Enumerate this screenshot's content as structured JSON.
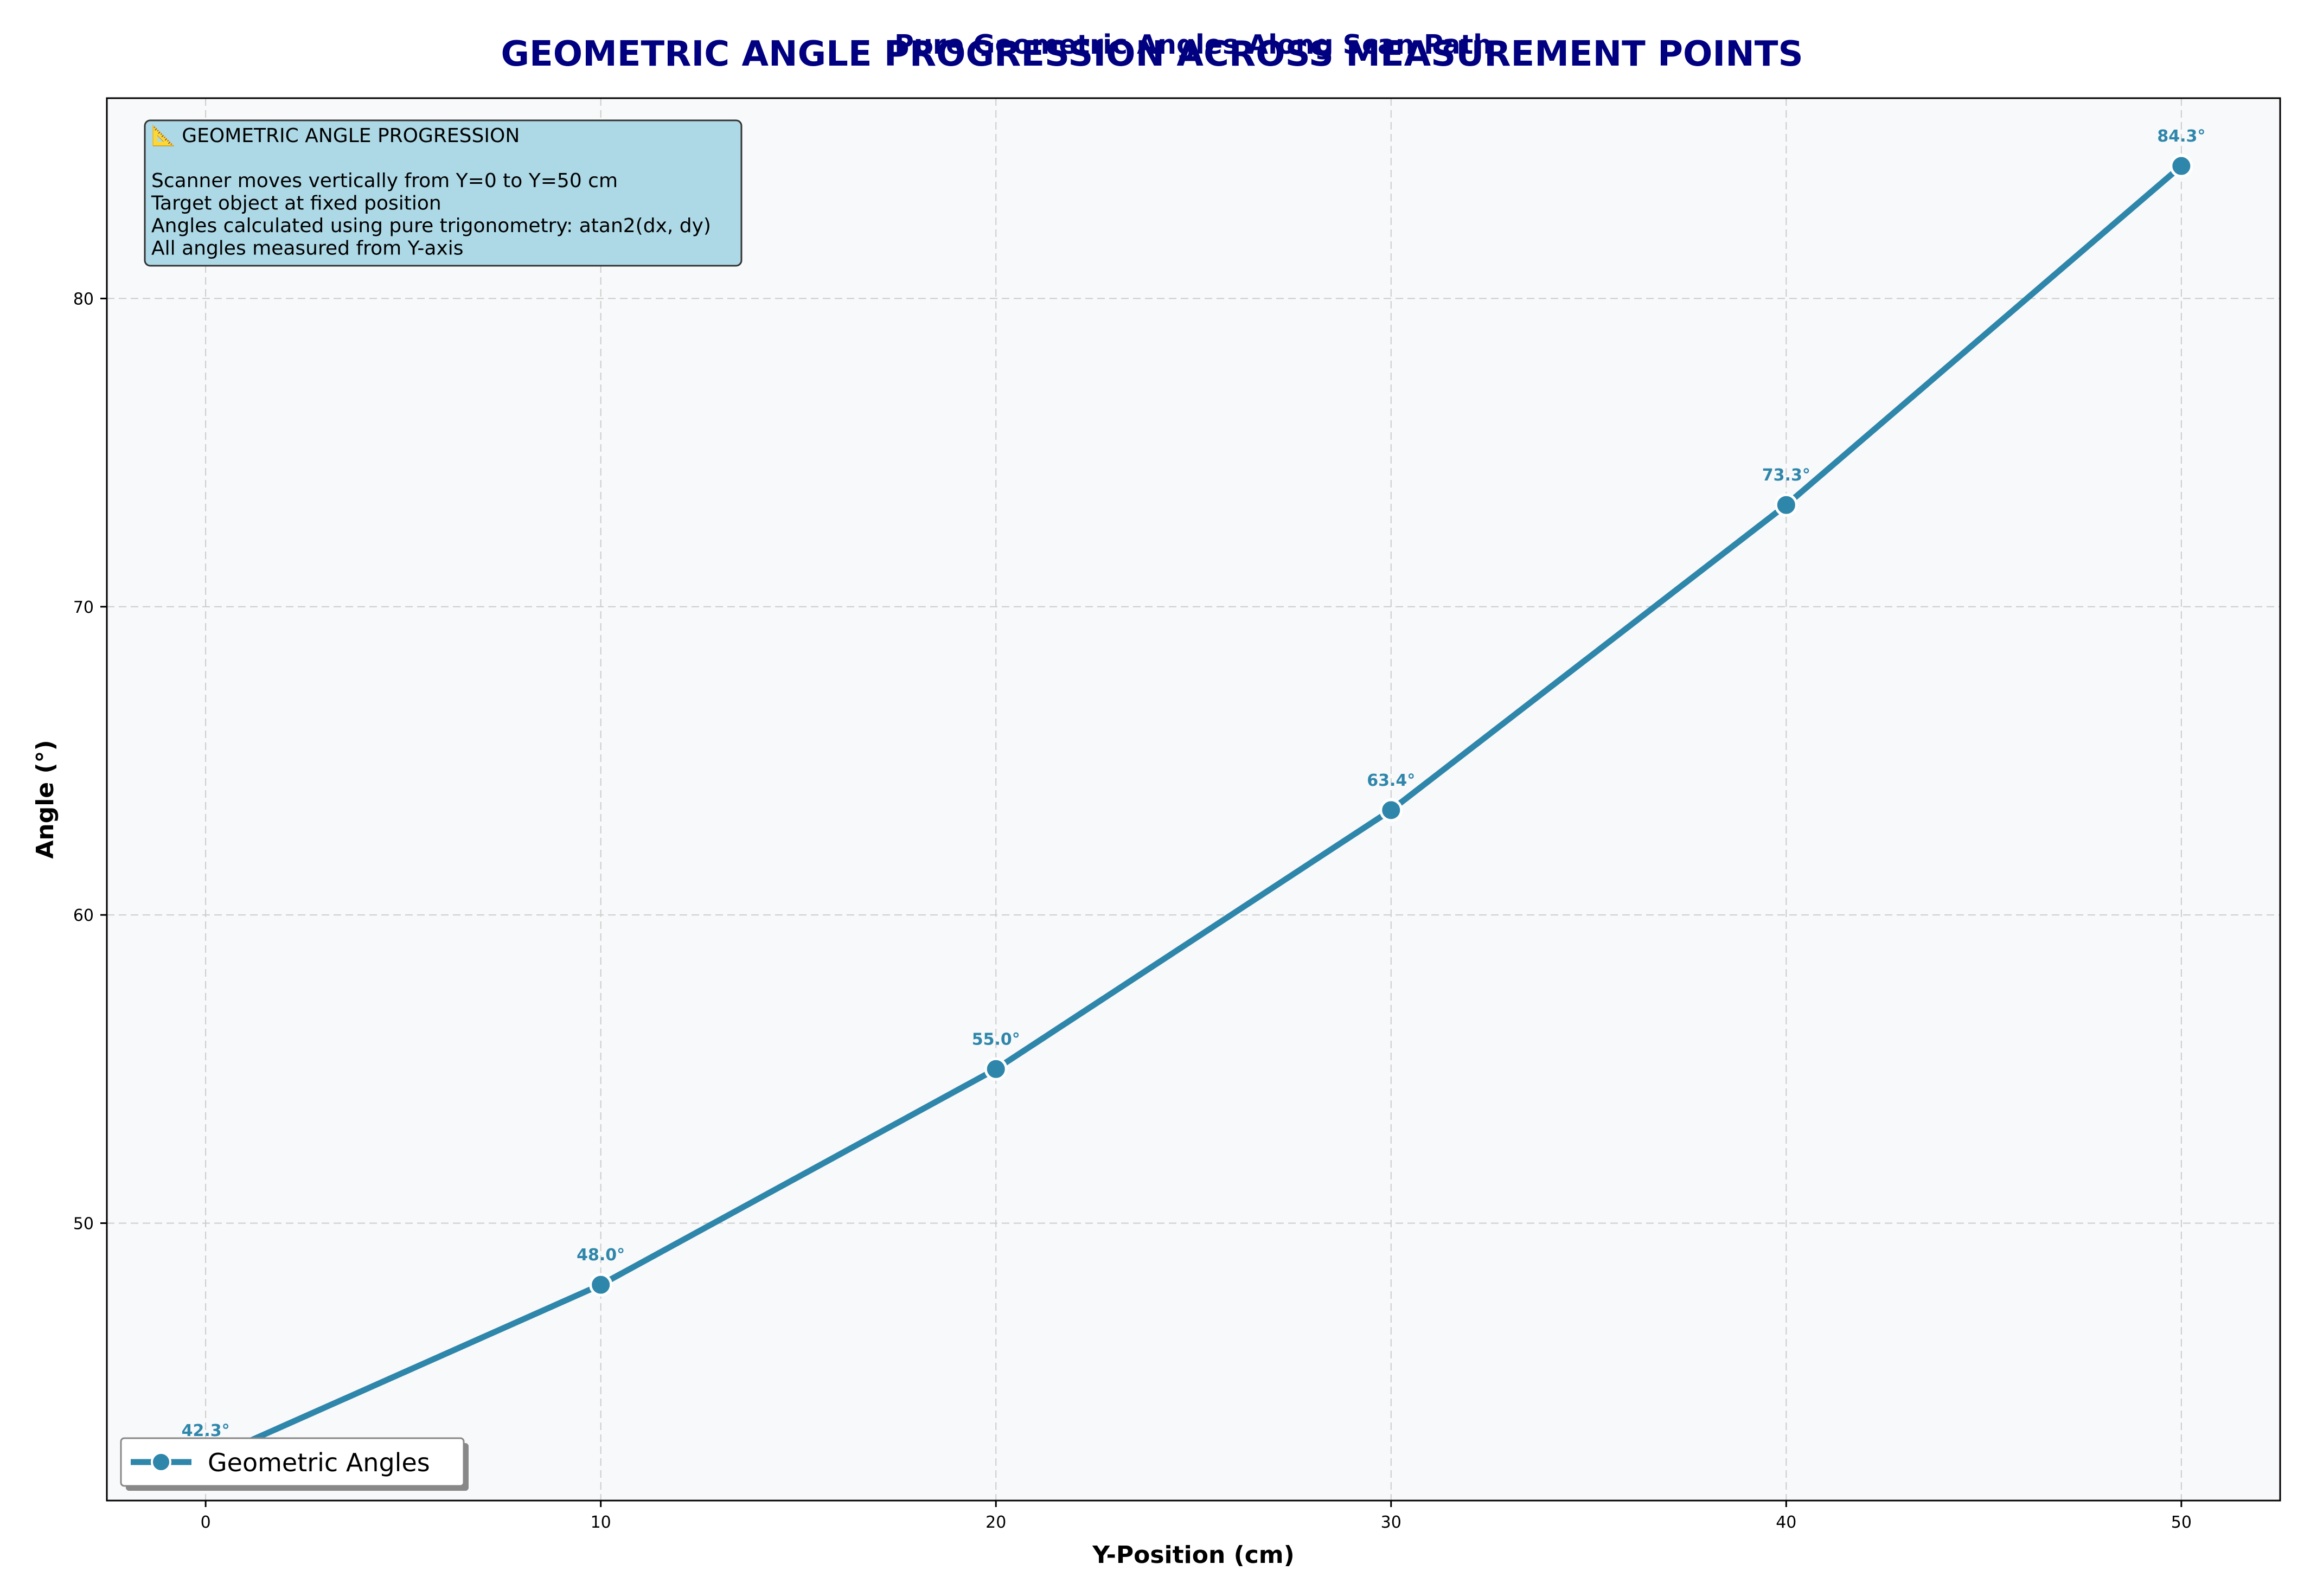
{
  "chart_data": {
    "type": "line",
    "suptitle": "GEOMETRIC ANGLE PROGRESSION ACROSS MEASUREMENT POINTS",
    "title": "Pure Geometric Angles Along Scan Path",
    "xlabel": "Y-Position (cm)",
    "ylabel": "Angle (°)",
    "xlim": [
      -2.5,
      52.5
    ],
    "ylim": [
      41.0,
      86.5
    ],
    "xticks": [
      0,
      10,
      20,
      30,
      40,
      50
    ],
    "yticks": [
      50,
      60,
      70,
      80
    ],
    "grid": true,
    "legend_position": "lower-left",
    "series": [
      {
        "name": "Geometric Angles",
        "x": [
          0,
          10,
          20,
          30,
          40,
          50
        ],
        "values": [
          42.3,
          48.0,
          55.0,
          63.4,
          73.3,
          84.3
        ],
        "point_labels": [
          "42.3°",
          "48.0°",
          "55.0°",
          "63.4°",
          "73.3°",
          "84.3°"
        ],
        "color": "#2e86ab"
      }
    ],
    "annotation_box": {
      "lines": [
        "📐 GEOMETRIC ANGLE PROGRESSION",
        "",
        "Scanner moves vertically from Y=0 to Y=50 cm",
        "Target object at fixed position",
        "Angles calculated using pure trigonometry: atan2(dx, dy)",
        "All angles measured from Y-axis"
      ],
      "background": "#add8e6"
    },
    "colors": {
      "plot_background": "#f8f9fa",
      "title": "#000080",
      "grid": "#cccccc"
    }
  }
}
